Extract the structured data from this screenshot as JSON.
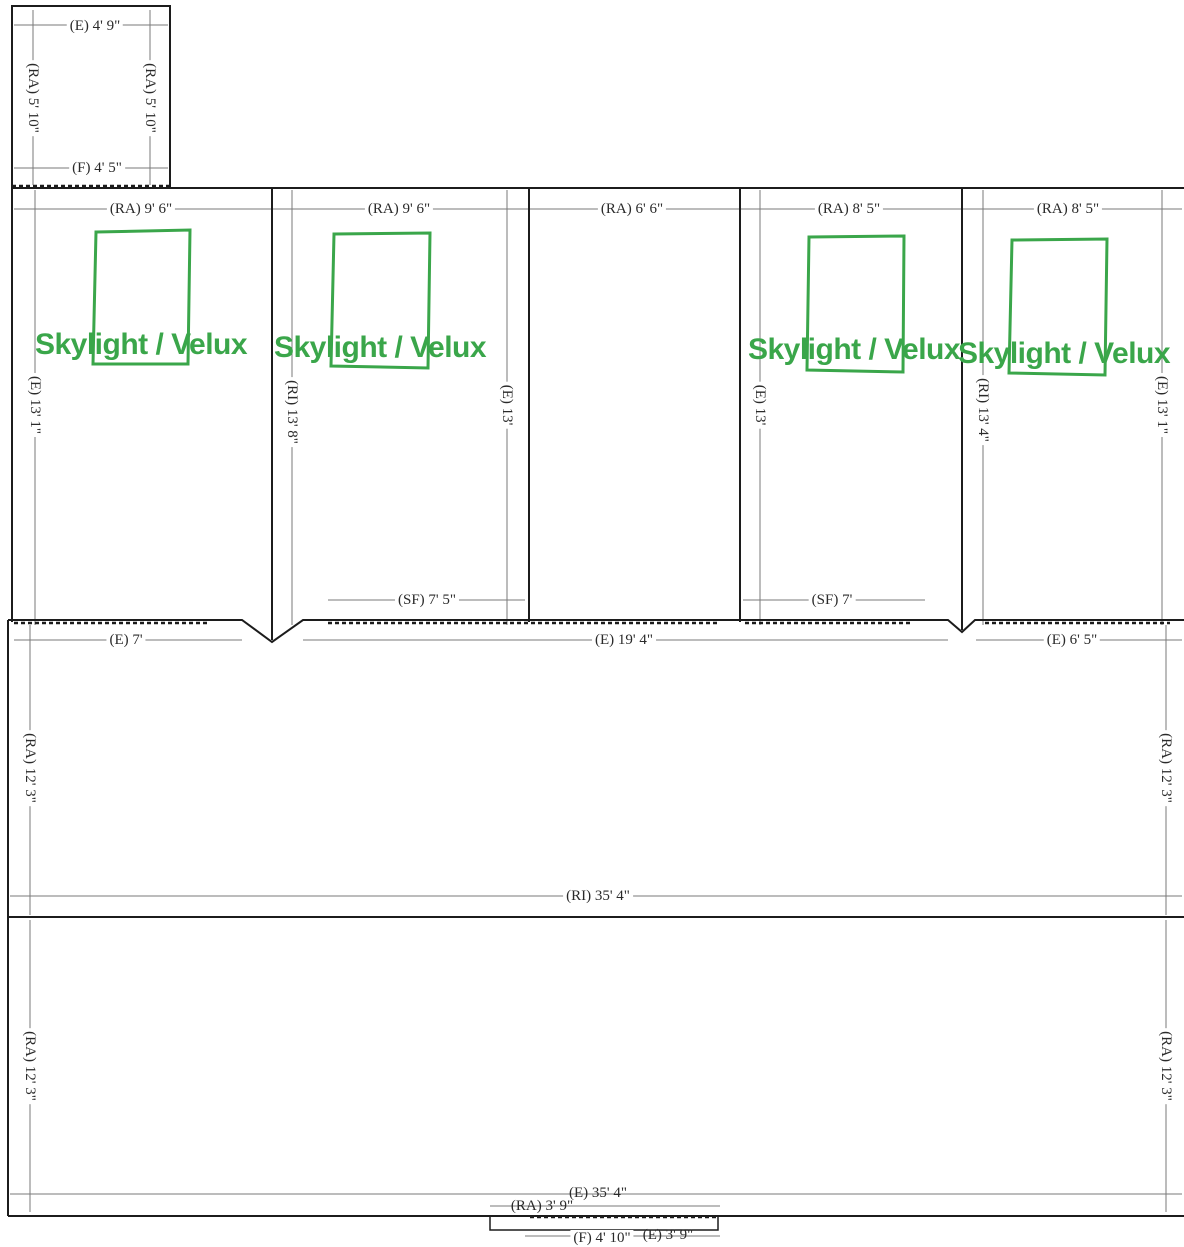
{
  "accent_color": "#3aa64a",
  "skylight_label": "Skylight / Velux",
  "measurements": {
    "top_e": "(E) 4' 9\"",
    "top_ra_left": "(RA) 5' 10\"",
    "top_ra_right": "(RA) 5' 10\"",
    "top_f": "(F) 4' 5\"",
    "s1_ra": "(RA) 9' 6\"",
    "s2_ra": "(RA) 9' 6\"",
    "s3_ra": "(RA) 6' 6\"",
    "s4_ra": "(RA) 8' 5\"",
    "s5_ra": "(RA) 8' 5\"",
    "s1_e": "(E) 13' 1\"",
    "s2_ri": "(RI) 13' 8\"",
    "s2_e": "(E) 13'",
    "s4_e": "(E) 13'",
    "s5_ri": "(RI) 13' 4\"",
    "s5_e": "(E) 13' 1\"",
    "sf_a": "(SF) 7' 5\"",
    "sf_b": "(SF) 7'",
    "e_a": "(E) 7'",
    "e_b": "(E) 19' 4\"",
    "e_c": "(E) 6' 5\"",
    "ra_mid_left": "(RA) 12' 3\"",
    "ra_mid_right": "(RA) 12' 3\"",
    "ri_mid": "(RI) 35' 4\"",
    "ra_low_left": "(RA) 12' 3\"",
    "ra_low_right": "(RA) 12' 3\"",
    "e_bottom": "(E) 35' 4\"",
    "bottom_ra": "(RA) 3' 9\"",
    "bottom_f": "(F) 4' 10\"",
    "bottom_e": "(E) 3' 9\""
  }
}
